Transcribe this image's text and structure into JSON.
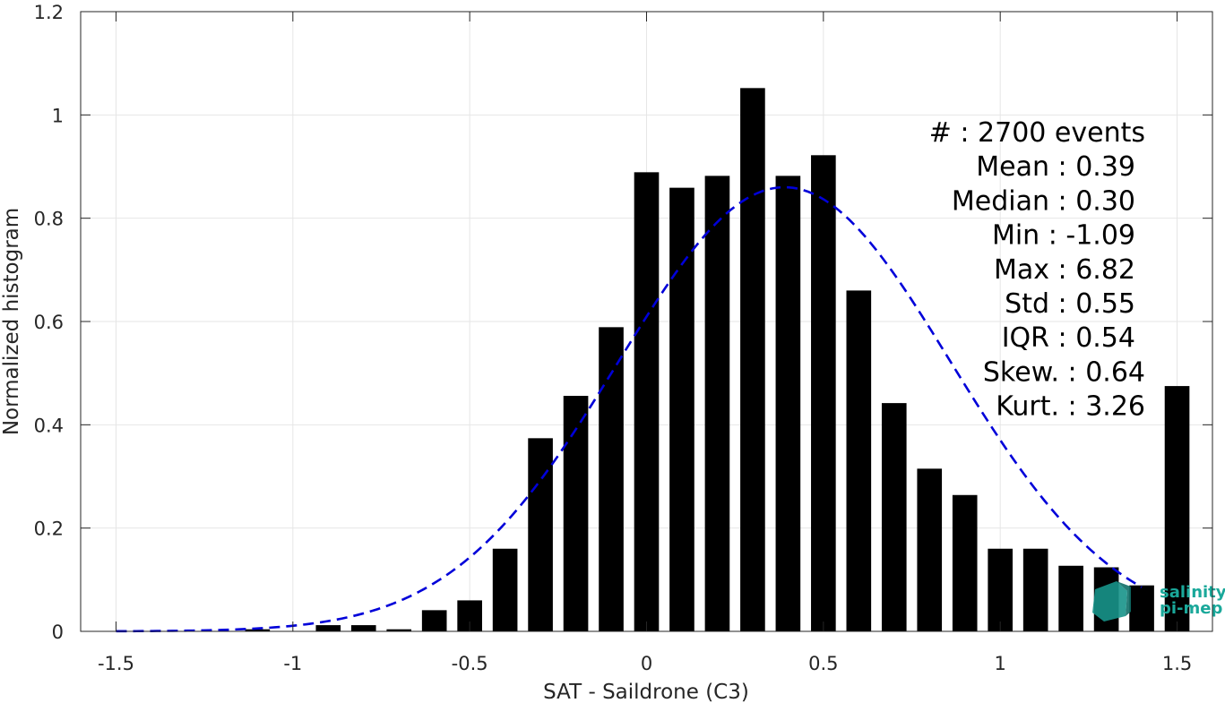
{
  "chart_data": {
    "type": "bar",
    "xlabel": "SAT - Saildrone (C3)",
    "ylabel": "Normalized histogram",
    "xlim": [
      -1.6,
      1.6
    ],
    "ylim": [
      0,
      1.2
    ],
    "grid": true,
    "xticks": [
      -1.5,
      -1,
      -0.5,
      0,
      0.5,
      1,
      1.5
    ],
    "xtick_labels": [
      "-1.5",
      "-1",
      "-0.5",
      "0",
      "0.5",
      "1",
      "1.5"
    ],
    "yticks": [
      0,
      0.2,
      0.4,
      0.6,
      0.8,
      1,
      1.2
    ],
    "ytick_labels": [
      "0",
      "0.2",
      "0.4",
      "0.6",
      "0.8",
      "1",
      "1.2"
    ],
    "bar_width": 0.07,
    "x": [
      -1.1,
      -1.0,
      -0.9,
      -0.8,
      -0.7,
      -0.6,
      -0.5,
      -0.4,
      -0.3,
      -0.2,
      -0.1,
      0.0,
      0.1,
      0.2,
      0.3,
      0.4,
      0.5,
      0.6,
      0.7,
      0.8,
      0.9,
      1.0,
      1.1,
      1.2,
      1.3,
      1.4,
      1.5
    ],
    "values": [
      0.004,
      0.0,
      0.012,
      0.012,
      0.004,
      0.041,
      0.06,
      0.16,
      0.374,
      0.456,
      0.589,
      0.889,
      0.859,
      0.882,
      1.052,
      0.882,
      0.922,
      0.66,
      0.442,
      0.315,
      0.264,
      0.16,
      0.16,
      0.127,
      0.124,
      0.089,
      0.475
    ],
    "bar_color": "#000000",
    "fit": {
      "style": "dashed",
      "color": "#0000d9",
      "mean": 0.39,
      "std": 0.47,
      "amplitude": 0.86,
      "x_range": [
        -1.5,
        1.4
      ]
    },
    "stats_lines": [
      "#  : 2700 events",
      "Mean : 0.39",
      "Median : 0.30",
      "Min : -1.09",
      "Max : 6.82",
      "Std : 0.55",
      "IQR : 0.54",
      "Skew. : 0.64",
      "Kurt. : 3.26"
    ],
    "logo": {
      "line1": "salinity",
      "line2": "pi-mep",
      "color": "#1aa89a"
    }
  }
}
